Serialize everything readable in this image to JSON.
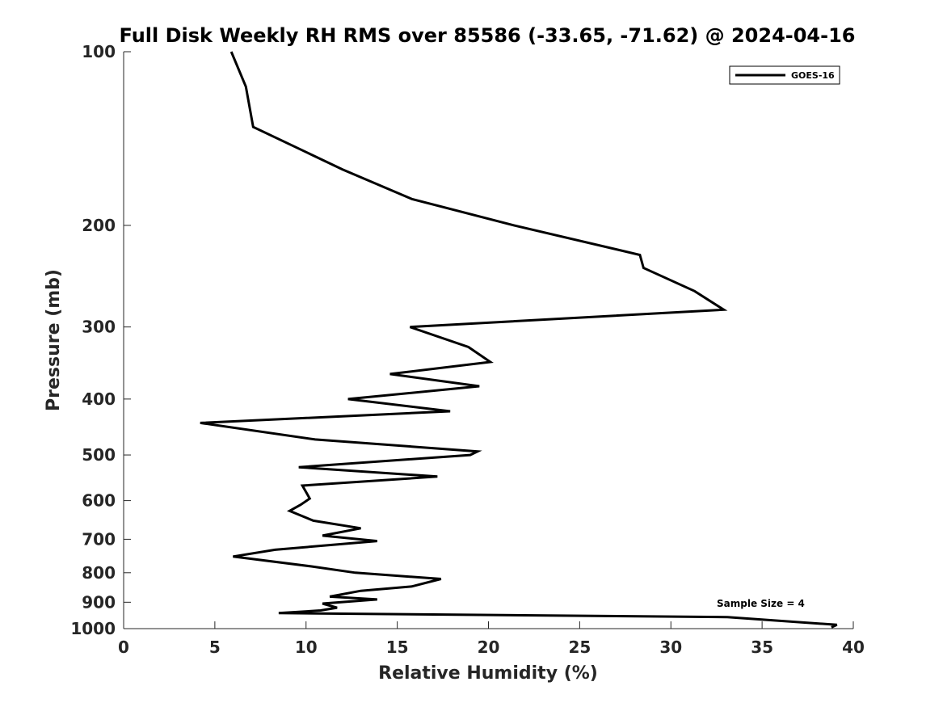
{
  "chart_data": {
    "type": "line",
    "title": "Full Disk Weekly RH RMS over 85586 (-33.65, -71.62) @ 2024-04-16",
    "xlabel": "Relative Humidity (%)",
    "ylabel": "Pressure (mb)",
    "xlim": [
      0,
      40
    ],
    "ylim": [
      100,
      1000
    ],
    "y_scale": "log",
    "y_reversed": true,
    "x_ticks": [
      "0",
      "5",
      "10",
      "15",
      "20",
      "25",
      "30",
      "35",
      "40"
    ],
    "y_ticks": [
      "100",
      "200",
      "300",
      "400",
      "500",
      "600",
      "700",
      "800",
      "900",
      "1000"
    ],
    "grid": false,
    "legend_position": "top-right",
    "annotation": "Sample Size = 4",
    "series": [
      {
        "name": "GOES-16",
        "color": "#000000",
        "points": [
          [
            5.9,
            100
          ],
          [
            6.7,
            115
          ],
          [
            7.1,
            135
          ],
          [
            12.0,
            160
          ],
          [
            15.8,
            180
          ],
          [
            21.4,
            200
          ],
          [
            28.3,
            225
          ],
          [
            28.5,
            237
          ],
          [
            31.3,
            260
          ],
          [
            32.9,
            280
          ],
          [
            15.7,
            300
          ],
          [
            18.9,
            325
          ],
          [
            20.1,
            345
          ],
          [
            14.6,
            362
          ],
          [
            19.5,
            380
          ],
          [
            12.3,
            400
          ],
          [
            17.9,
            420
          ],
          [
            4.2,
            440
          ],
          [
            10.5,
            470
          ],
          [
            19.4,
            493
          ],
          [
            19.0,
            500
          ],
          [
            9.6,
            525
          ],
          [
            17.2,
            545
          ],
          [
            9.8,
            565
          ],
          [
            10.2,
            595
          ],
          [
            9.7,
            610
          ],
          [
            9.1,
            625
          ],
          [
            10.4,
            650
          ],
          [
            13.0,
            670
          ],
          [
            10.9,
            690
          ],
          [
            13.9,
            705
          ],
          [
            8.3,
            730
          ],
          [
            6.0,
            750
          ],
          [
            10.3,
            780
          ],
          [
            12.7,
            800
          ],
          [
            17.4,
            820
          ],
          [
            15.8,
            845
          ],
          [
            13.0,
            860
          ],
          [
            11.3,
            880
          ],
          [
            13.9,
            890
          ],
          [
            10.9,
            905
          ],
          [
            11.7,
            920
          ],
          [
            10.8,
            930
          ],
          [
            8.5,
            940
          ],
          [
            33.1,
            955
          ],
          [
            39.1,
            985
          ],
          [
            38.8,
            995
          ]
        ]
      }
    ]
  }
}
